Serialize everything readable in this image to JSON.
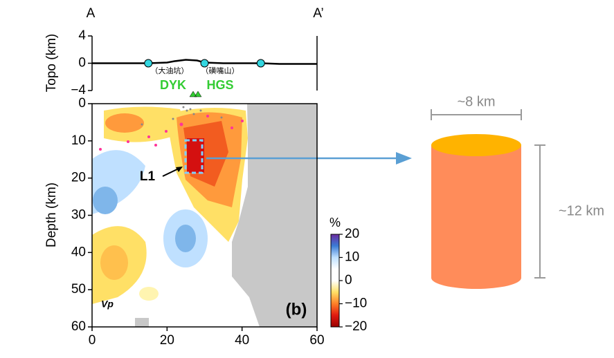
{
  "chart_data": [
    {
      "type": "line",
      "label_left": "A",
      "label_right": "A’",
      "ylabel": "Topo (km)",
      "xlim": [
        0,
        60
      ],
      "ylim": [
        -4,
        4
      ],
      "yticks": [
        {
          "value": -4,
          "label": "−4"
        },
        0,
        4
      ],
      "x": [
        0,
        5,
        10,
        15,
        20,
        22,
        25,
        28,
        30,
        35,
        40,
        45,
        50,
        55,
        60
      ],
      "values": [
        0,
        0,
        0,
        0,
        0.1,
        0.3,
        0.5,
        0.4,
        0.1,
        0,
        0,
        0,
        -0.1,
        -0.1,
        -0.1
      ],
      "color": "#000000",
      "stations": {
        "x": [
          15,
          30,
          45
        ],
        "values": [
          0,
          0,
          0
        ],
        "color": "#33d6e0"
      },
      "annotations": [
        "（大油坑）",
        "（磺嘴山）",
        "DYK",
        "HGS"
      ]
    },
    {
      "type": "contour",
      "ylabel": "Depth (km)",
      "xlim": [
        0,
        60
      ],
      "xticks": [
        0,
        20,
        40,
        60
      ],
      "ylim": [
        60,
        0
      ],
      "yticks": [
        0,
        10,
        20,
        30,
        40,
        50,
        60
      ],
      "annotations": [
        "L1",
        "Vp",
        "(b)"
      ]
    },
    {
      "type": "colorbar",
      "title": "%",
      "lim": [
        -20,
        20
      ],
      "ticks": [
        {
          "value": -20,
          "label": "−20"
        },
        {
          "value": -10,
          "label": "−10"
        },
        0,
        10,
        20
      ],
      "colors": [
        "#9a0000",
        "#e01a10",
        "#ff7f27",
        "#ffe066",
        "#ffffff",
        "#ffffff",
        "#bfe0ff",
        "#3a7bd5",
        "#6a2aa0"
      ]
    }
  ],
  "diagram": {
    "width_label": "~8 km",
    "height_label": "~12 km"
  }
}
